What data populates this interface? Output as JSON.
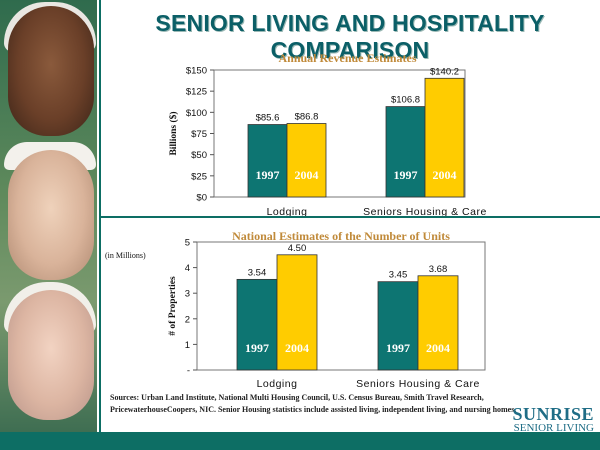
{
  "title": "SENIOR LIVING AND HOSPITALITY COMPARISON",
  "sources": "Sources:  Urban Land Institute, National Multi Housing Council, U.S. Census Bureau, Smith Travel Research, PricewaterhouseCoopers, NIC.  Senior Housing statistics include assisted living, independent living, and nursing homes.",
  "logo": {
    "name": "SUNRISE",
    "sub": "SENIOR LIVING"
  },
  "colors": {
    "teal": "#0d7572",
    "gold": "#ffcc00",
    "title": "#0b5f67",
    "chart_title": "#c08a3a"
  },
  "chart_data": [
    {
      "type": "bar",
      "title": "Annual Revenue Estimates",
      "ylabel": "Billions ($)",
      "ylim": [
        0,
        150
      ],
      "yticks": [
        "$0",
        "$25",
        "$50",
        "$75",
        "$100",
        "$125",
        "$150"
      ],
      "categories": [
        "Lodging",
        "Seniors Housing & Care"
      ],
      "series": [
        {
          "name": "1997",
          "values": [
            85.6,
            106.8
          ],
          "labels": [
            "$85.6",
            "$106.8"
          ]
        },
        {
          "name": "2004",
          "values": [
            86.8,
            140.2
          ],
          "labels": [
            "$86.8",
            "$140.2"
          ]
        }
      ]
    },
    {
      "type": "bar",
      "title": "National Estimates of the Number of Units",
      "ylabel": "# of Properties",
      "note": "(in Millions)",
      "ylim": [
        0,
        5
      ],
      "yticks": [
        "-",
        "1",
        "2",
        "3",
        "4",
        "5"
      ],
      "categories": [
        "Lodging",
        "Seniors Housing & Care"
      ],
      "series": [
        {
          "name": "1997",
          "values": [
            3.54,
            3.45
          ],
          "labels": [
            "3.54",
            "3.45"
          ]
        },
        {
          "name": "2004",
          "values": [
            4.5,
            3.68
          ],
          "labels": [
            "4.50",
            "3.68"
          ]
        }
      ]
    }
  ]
}
